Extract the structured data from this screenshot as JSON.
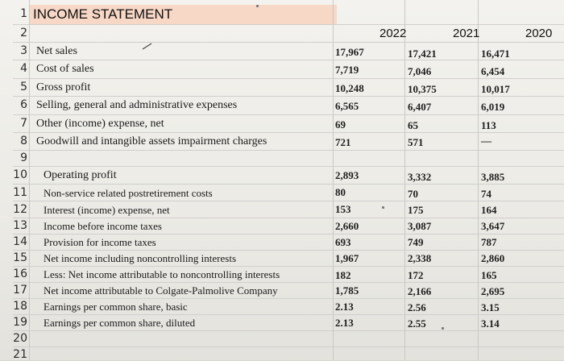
{
  "sheet": {
    "title": "INCOME STATEMENT",
    "years": [
      "2022",
      "2021",
      "2020"
    ],
    "row_numbers": [
      "1",
      "2",
      "3",
      "4",
      "5",
      "6",
      "7",
      "8",
      "9",
      "10",
      "11",
      "12",
      "13",
      "14",
      "15",
      "16",
      "17",
      "18",
      "19",
      "20",
      "21"
    ],
    "rows": [
      {
        "label": "Net sales",
        "v": [
          "17,967",
          "17,421",
          "16,471"
        ]
      },
      {
        "label": "Cost of sales",
        "v": [
          "7,719",
          "7,046",
          "6,454"
        ]
      },
      {
        "label": "Gross profit",
        "v": [
          "10,248",
          "10,375",
          "10,017"
        ]
      },
      {
        "label": "Selling, general and administrative expenses",
        "v": [
          "6,565",
          "6,407",
          "6,019"
        ]
      },
      {
        "label": "Other (income) expense, net",
        "v": [
          "69",
          "65",
          "113"
        ]
      },
      {
        "label": "Goodwill and intangible assets impairment charges",
        "v": [
          "721",
          "571",
          "—"
        ]
      },
      {
        "label": "Operating profit",
        "v": [
          "2,893",
          "3,332",
          "3,885"
        ]
      },
      {
        "label": "Non-service related postretirement costs",
        "v": [
          "80",
          "70",
          "74"
        ]
      },
      {
        "label": "Interest (income) expense, net",
        "v": [
          "153",
          "175",
          "164"
        ]
      },
      {
        "label": "Income before income taxes",
        "v": [
          "2,660",
          "3,087",
          "3,647"
        ]
      },
      {
        "label": "Provision for income taxes",
        "v": [
          "693",
          "749",
          "787"
        ]
      },
      {
        "label": "Net income including noncontrolling interests",
        "v": [
          "1,967",
          "2,338",
          "2,860"
        ]
      },
      {
        "label": "Less: Net income attributable to noncontrolling interests",
        "v": [
          "182",
          "172",
          "165"
        ]
      },
      {
        "label": "Net income attributable to Colgate-Palmolive Company",
        "v": [
          "1,785",
          "2,166",
          "2,695"
        ]
      },
      {
        "label": "Earnings per common share, basic",
        "v": [
          "2.13",
          "2.56",
          "3.15"
        ]
      },
      {
        "label": "Earnings per common share, diluted",
        "v": [
          "2.13",
          "2.55",
          "3.14"
        ]
      }
    ]
  },
  "colors": {
    "title_band": "#f7d7c6",
    "grid": "#cfcfcc"
  }
}
